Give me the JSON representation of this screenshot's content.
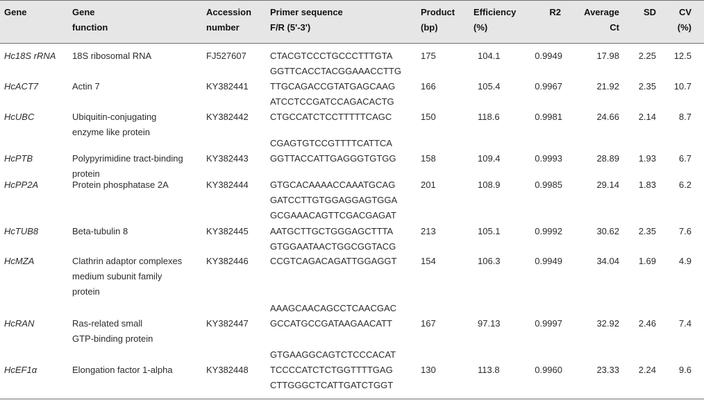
{
  "headers": {
    "gene": "Gene",
    "function_l1": "Gene",
    "function_l2": "function",
    "accession_l1": "Accession",
    "accession_l2": "number",
    "primer_l1": "Primer sequence",
    "primer_l2": "F/R (5'-3')",
    "product_l1": "Product",
    "product_l2": "(bp)",
    "efficiency_l1": "Efficiency",
    "efficiency_l2": "(%)",
    "r2": "R2",
    "avgct_l1": "Average",
    "avgct_l2": "Ct",
    "sd": "SD",
    "cv_l1": "CV",
    "cv_l2": "(%)"
  },
  "rows": [
    {
      "gene": "Hc18S rRNA",
      "function": [
        "18S ribosomal RNA"
      ],
      "accession": "FJ527607",
      "product": "175",
      "efficiency": "104.1",
      "r2": "0.9949",
      "avg_ct": "17.98",
      "sd": "2.25",
      "cv": "12.5"
    },
    {
      "gene": "HcACT7",
      "function": [
        "Actin 7"
      ],
      "accession": "KY382441",
      "product": "166",
      "efficiency": "105.4",
      "r2": "0.9967",
      "avg_ct": "21.92",
      "sd": "2.35",
      "cv": "10.7"
    },
    {
      "gene": "HcUBC",
      "function": [
        "Ubiquitin-conjugating",
        "enzyme like protein"
      ],
      "accession": "KY382442",
      "product": "150",
      "efficiency": "118.6",
      "r2": "0.9981",
      "avg_ct": "24.66",
      "sd": "2.14",
      "cv": "8.7"
    },
    {
      "gene": "HcPTB",
      "function": [
        "Polypyrimidine tract-binding",
        "protein"
      ],
      "accession": "KY382443",
      "product": "158",
      "efficiency": "109.4",
      "r2": "0.9993",
      "avg_ct": "28.89",
      "sd": "1.93",
      "cv": "6.7"
    },
    {
      "gene": "HcPP2A",
      "function": [
        "Protein phosphatase 2A"
      ],
      "accession": "KY382444",
      "product": "201",
      "efficiency": "108.9",
      "r2": "0.9985",
      "avg_ct": "29.14",
      "sd": "1.83",
      "cv": "6.2"
    },
    {
      "gene": "HcTUB8",
      "function": [
        "Beta-tubulin 8"
      ],
      "accession": "KY382445",
      "product": "213",
      "efficiency": "105.1",
      "r2": "0.9992",
      "avg_ct": "30.62",
      "sd": "2.35",
      "cv": "7.6"
    },
    {
      "gene": "HcMZA",
      "function": [
        "Clathrin adaptor complexes",
        "medium subunit family",
        "protein"
      ],
      "accession": "KY382446",
      "product": "154",
      "efficiency": "106.3",
      "r2": "0.9949",
      "avg_ct": "34.04",
      "sd": "1.69",
      "cv": "4.9"
    },
    {
      "gene": "HcRAN",
      "function": [
        "Ras-related small",
        "GTP-binding protein"
      ],
      "accession": "KY382447",
      "product": "167",
      "efficiency": "97.13",
      "r2": "0.9997",
      "avg_ct": "32.92",
      "sd": "2.46",
      "cv": "7.4"
    },
    {
      "gene": "HcEF1α",
      "function": [
        "Elongation factor 1-alpha"
      ],
      "accession": "KY382448",
      "product": "130",
      "efficiency": "113.8",
      "r2": "0.9960",
      "avg_ct": "23.33",
      "sd": "2.24",
      "cv": "9.6"
    }
  ],
  "primers": [
    "CTACGTCCCTGCCCTTTGTA",
    "GGTTCACCTACGGAAACCTTG",
    "TTGCAGACCGTATGAGCAAG",
    "ATCCTCCGATCCAGACACTG",
    "CTGCCATCTCCTTTTTCAGC",
    "CGAGTGTCCGTTTTCATTCA",
    "GGTTACCATTGAGGGTGTGG",
    "GTGCACAAAACCAAATGCAG",
    "GATCCTTGTGGAGGAGTGGA",
    "GCGAAACAGTTCGACGAGAT",
    "AATGCTTGCTGGGAGCTTTA",
    "GTGGAATAACTGGCGGTACG",
    "CCGTCAGACAGATTGGAGGT",
    "AAAGCAACAGCCTCAACGAC",
    "GCCATGCCGATAAGAACATT",
    "GTGAAGGCAGTCTCCCACAT",
    "TCCCCATCTCTGGTTTTGAG",
    "CTTGGGCTCATTGATCTGGT"
  ]
}
